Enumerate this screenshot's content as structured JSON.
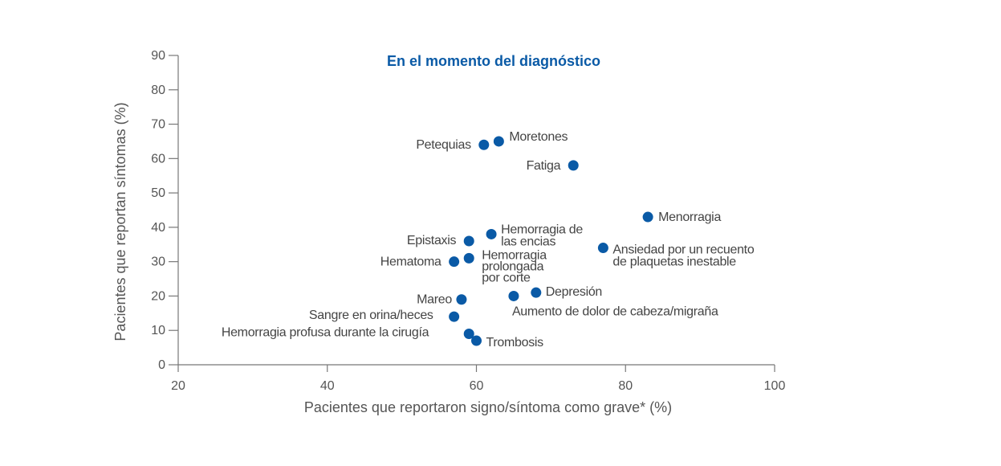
{
  "chart_data": {
    "type": "scatter",
    "title": "En el momento del diagnóstico",
    "xlabel": "Pacientes que reportaron signo/síntoma como grave* (%)",
    "ylabel": "Pacientes que reportan síntomas (%)",
    "xlim": [
      20,
      100
    ],
    "ylim": [
      0,
      90
    ],
    "xticks": [
      20,
      40,
      60,
      80,
      100
    ],
    "yticks": [
      0,
      10,
      20,
      30,
      40,
      50,
      60,
      70,
      80,
      90
    ],
    "grid": false,
    "colors": {
      "points": "#0a5aa6",
      "title": "#0a5aa6",
      "axis": "#777777"
    },
    "points": [
      {
        "label": "Petequias",
        "x": 61,
        "y": 64
      },
      {
        "label": "Moretones",
        "x": 63,
        "y": 65
      },
      {
        "label": "Fatiga",
        "x": 73,
        "y": 58
      },
      {
        "label": "Menorragia",
        "x": 83,
        "y": 43
      },
      {
        "label": "Hemorragia de las encias",
        "x": 62,
        "y": 38
      },
      {
        "label": "Epistaxis",
        "x": 59,
        "y": 36
      },
      {
        "label": "Ansiedad por un recuento de plaquetas inestable",
        "x": 77,
        "y": 34
      },
      {
        "label": "Hematoma",
        "x": 57,
        "y": 30
      },
      {
        "label": "Hemorragia prolongada por corte",
        "x": 59,
        "y": 31
      },
      {
        "label": "Depresión",
        "x": 68,
        "y": 21
      },
      {
        "label": "Aumento de dolor de cabeza/migraña",
        "x": 65,
        "y": 20
      },
      {
        "label": "Mareo",
        "x": 58,
        "y": 19
      },
      {
        "label": "Sangre en orina/heces",
        "x": 57,
        "y": 14
      },
      {
        "label": "Hemorragia profusa durante la cirugía",
        "x": 59,
        "y": 9
      },
      {
        "label": "Trombosis",
        "x": 60,
        "y": 7
      }
    ]
  }
}
